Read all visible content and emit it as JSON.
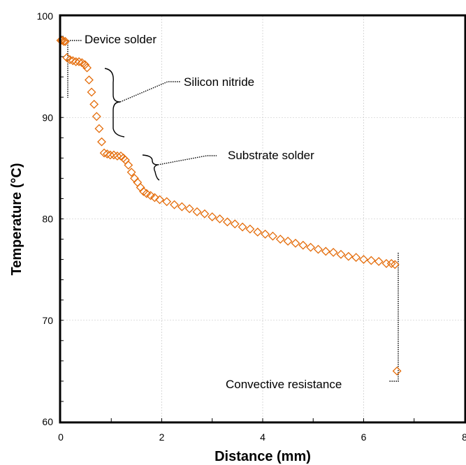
{
  "chart_data": {
    "type": "scatter",
    "title": "",
    "xlabel": "Distance (mm)",
    "ylabel": "Temperature (°C)",
    "xlim": [
      0,
      8
    ],
    "ylim": [
      60,
      100
    ],
    "x_ticks": [
      "0",
      "2",
      "4",
      "6",
      "8"
    ],
    "y_ticks": [
      "60",
      "70",
      "80",
      "90",
      "100"
    ],
    "grid": true,
    "marker": "open-diamond",
    "marker_color": "#e46c0a",
    "series": [
      {
        "name": "",
        "points": [
          [
            0.0,
            97.6
          ],
          [
            0.03,
            97.6
          ],
          [
            0.06,
            97.5
          ],
          [
            0.09,
            97.5
          ],
          [
            0.12,
            95.9
          ],
          [
            0.18,
            95.7
          ],
          [
            0.24,
            95.6
          ],
          [
            0.3,
            95.5
          ],
          [
            0.36,
            95.5
          ],
          [
            0.42,
            95.4
          ],
          [
            0.48,
            95.2
          ],
          [
            0.52,
            94.9
          ],
          [
            0.56,
            93.7
          ],
          [
            0.61,
            92.5
          ],
          [
            0.66,
            91.3
          ],
          [
            0.71,
            90.1
          ],
          [
            0.76,
            88.9
          ],
          [
            0.81,
            87.6
          ],
          [
            0.86,
            86.5
          ],
          [
            0.92,
            86.4
          ],
          [
            0.98,
            86.3
          ],
          [
            1.05,
            86.3
          ],
          [
            1.12,
            86.2
          ],
          [
            1.19,
            86.2
          ],
          [
            1.24,
            86.0
          ],
          [
            1.28,
            85.8
          ],
          [
            1.34,
            85.3
          ],
          [
            1.4,
            84.6
          ],
          [
            1.46,
            84.0
          ],
          [
            1.52,
            83.6
          ],
          [
            1.58,
            83.1
          ],
          [
            1.64,
            82.7
          ],
          [
            1.7,
            82.5
          ],
          [
            1.78,
            82.3
          ],
          [
            1.86,
            82.1
          ],
          [
            1.96,
            81.9
          ],
          [
            2.1,
            81.7
          ],
          [
            2.25,
            81.4
          ],
          [
            2.4,
            81.2
          ],
          [
            2.55,
            81.0
          ],
          [
            2.7,
            80.7
          ],
          [
            2.85,
            80.5
          ],
          [
            3.0,
            80.2
          ],
          [
            3.15,
            80.0
          ],
          [
            3.3,
            79.7
          ],
          [
            3.45,
            79.5
          ],
          [
            3.6,
            79.2
          ],
          [
            3.75,
            79.0
          ],
          [
            3.9,
            78.7
          ],
          [
            4.05,
            78.5
          ],
          [
            4.2,
            78.3
          ],
          [
            4.35,
            78.0
          ],
          [
            4.5,
            77.8
          ],
          [
            4.65,
            77.6
          ],
          [
            4.8,
            77.4
          ],
          [
            4.95,
            77.2
          ],
          [
            5.1,
            77.0
          ],
          [
            5.25,
            76.8
          ],
          [
            5.4,
            76.7
          ],
          [
            5.55,
            76.5
          ],
          [
            5.7,
            76.3
          ],
          [
            5.85,
            76.2
          ],
          [
            6.0,
            76.0
          ],
          [
            6.15,
            75.9
          ],
          [
            6.3,
            75.8
          ],
          [
            6.45,
            75.6
          ],
          [
            6.55,
            75.6
          ],
          [
            6.62,
            75.5
          ],
          [
            6.66,
            65.0
          ]
        ]
      }
    ],
    "annotations": [
      {
        "text": "Device  solder",
        "at": [
          0.13,
          97.6
        ],
        "label_at": [
          0.45,
          97.8
        ]
      },
      {
        "text": "Silicon nitride",
        "at": [
          1.15,
          91.5
        ],
        "label_at": [
          2.3,
          93.3
        ]
      },
      {
        "text": "Substrate  solder",
        "at": [
          1.95,
          84.6
        ],
        "label_at": [
          3.3,
          86.2
        ]
      },
      {
        "text": "Convective resistance",
        "at": [
          6.66,
          65.0
        ],
        "label_at": [
          3.2,
          63.9
        ]
      }
    ]
  }
}
